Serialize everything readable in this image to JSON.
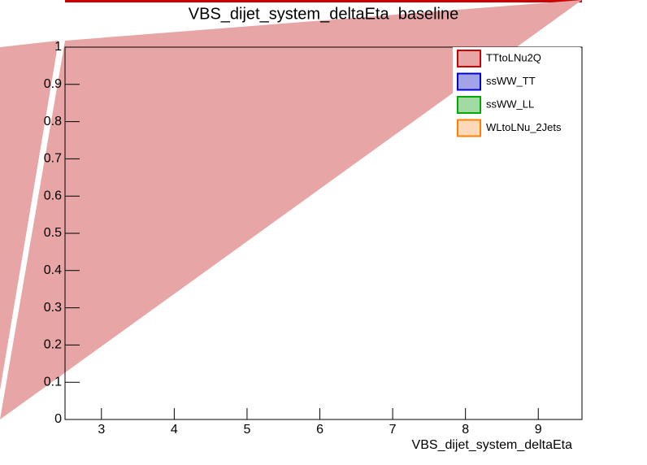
{
  "chart_data": {
    "type": "hist",
    "title": "VBS_dijet_system_deltaEta  baseline",
    "x_label": "VBS_dijet_system_deltaEta",
    "xlim": [
      2.5,
      9.6
    ],
    "xticks": [
      3,
      4,
      5,
      6,
      7,
      8,
      9
    ],
    "ylim": [
      0,
      1
    ],
    "yticks": [
      0,
      0.1,
      0.2,
      0.3,
      0.4,
      0.5,
      0.6,
      0.7,
      0.8,
      0.9,
      1
    ],
    "legend": "upper right",
    "series": [
      {
        "name": "TTtoLNu2Q",
        "color": "#e8a5a5",
        "edgecolor": "#cc0000"
      },
      {
        "name": "ssWW_TT",
        "color": "#a3a3e8",
        "edgecolor": "#0000cc"
      },
      {
        "name": "ssWW_LL",
        "color": "#a3d9a3",
        "edgecolor": "#00aa00"
      },
      {
        "name": "WLtoLNu_2Jets",
        "color": "#fcd9b8",
        "edgecolor": "#ff8000"
      }
    ]
  }
}
